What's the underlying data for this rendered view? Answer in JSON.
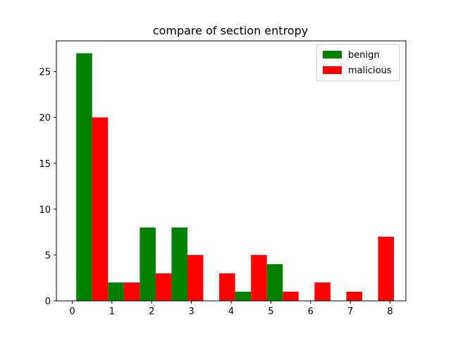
{
  "chart_data": {
    "type": "bar",
    "title": "compare of section entropy",
    "xlabel": "",
    "ylabel": "",
    "xlim": [
      -0.4,
      8.4
    ],
    "ylim": [
      0,
      28.35
    ],
    "xticks": [
      0,
      1,
      2,
      3,
      4,
      5,
      6,
      7,
      8
    ],
    "yticks": [
      0,
      5,
      10,
      15,
      20,
      25
    ],
    "bin_edges": [
      0.1,
      0.9,
      1.7,
      2.5,
      3.3,
      4.1,
      4.9,
      5.7,
      6.5,
      7.3,
      8.1
    ],
    "series": [
      {
        "name": "benign",
        "color": "#008000",
        "values": [
          27,
          2,
          8,
          8,
          0,
          1,
          4,
          0,
          0,
          0
        ]
      },
      {
        "name": "malicious",
        "color": "#ff0000",
        "values": [
          20,
          2,
          3,
          5,
          3,
          5,
          1,
          2,
          1,
          7
        ]
      }
    ],
    "legend": {
      "position": "top-right"
    },
    "grid": false
  }
}
